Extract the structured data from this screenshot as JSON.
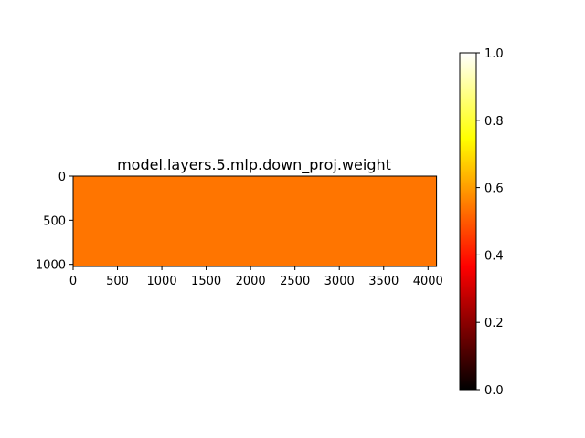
{
  "chart_data": {
    "type": "heatmap",
    "title": "model.layers.5.mlp.down_proj.weight",
    "xlabel": "",
    "ylabel": "",
    "x_range": [
      0,
      4096
    ],
    "y_range": [
      0,
      1024
    ],
    "y_inverted": true,
    "x_ticks": [
      0,
      500,
      1000,
      1500,
      2000,
      2500,
      3000,
      3500,
      4000
    ],
    "x_tick_labels": [
      "0",
      "500",
      "1000",
      "1500",
      "2000",
      "2500",
      "3000",
      "3500",
      "4000"
    ],
    "y_ticks": [
      0,
      500,
      1000
    ],
    "y_tick_labels": [
      "0",
      "500",
      "1000"
    ],
    "value": 0.6,
    "fill_color": "#ff7500",
    "colormap": "hot",
    "colorbar": {
      "range": [
        0.0,
        1.0
      ],
      "ticks": [
        0.0,
        0.2,
        0.4,
        0.6,
        0.8,
        1.0
      ],
      "tick_labels": [
        "0.0",
        "0.2",
        "0.4",
        "0.6",
        "0.8",
        "1.0"
      ]
    },
    "grid": false
  }
}
